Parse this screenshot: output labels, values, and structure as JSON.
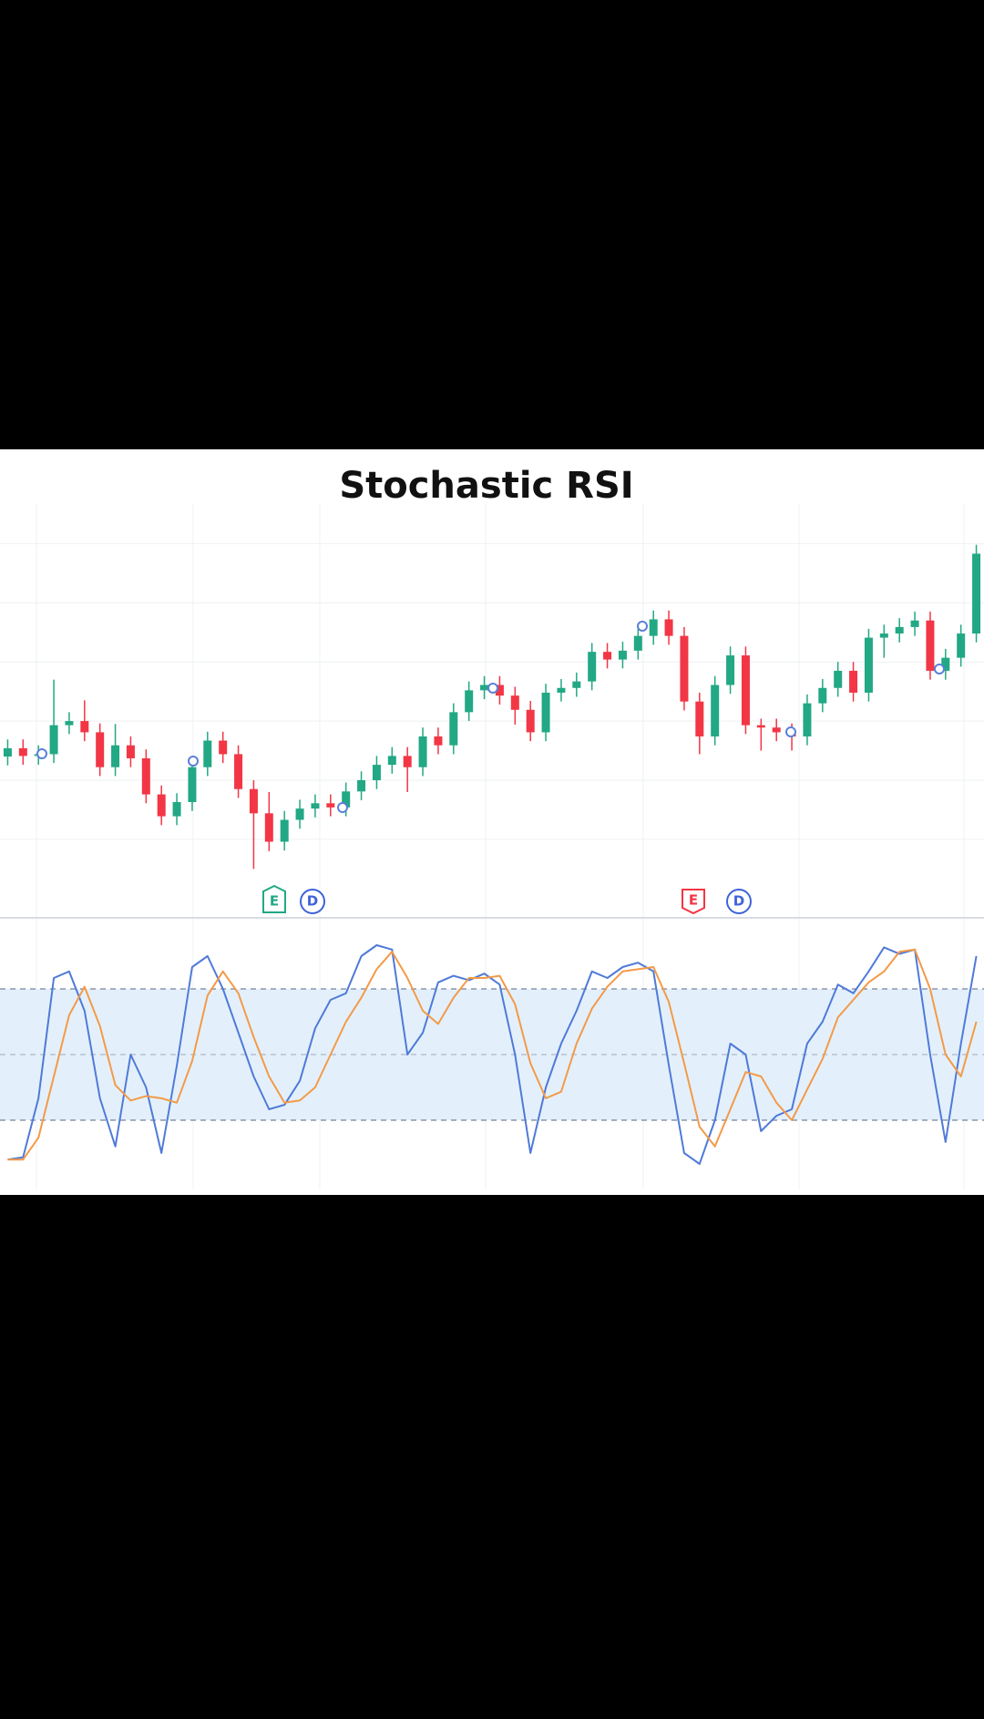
{
  "chart_data": [
    {
      "type": "candlestick",
      "title": "Stochastic RSI",
      "open": [
        2.4,
        2.54,
        2.41,
        2.44,
        2.93,
        3.0,
        2.81,
        2.22,
        2.59,
        2.37,
        1.76,
        1.39,
        1.63,
        2.22,
        2.67,
        2.44,
        1.85,
        1.44,
        0.96,
        1.33,
        1.52,
        1.61,
        1.54,
        1.81,
        2.0,
        2.26,
        2.41,
        2.22,
        2.74,
        2.59,
        3.15,
        3.52,
        3.61,
        3.43,
        3.19,
        2.81,
        3.48,
        3.56,
        3.67,
        4.17,
        4.04,
        4.19,
        4.44,
        4.72,
        4.44,
        3.33,
        2.74,
        3.61,
        4.11,
        2.93,
        2.89,
        2.81,
        2.74,
        3.3,
        3.56,
        3.85,
        3.48,
        4.41,
        4.48,
        4.59,
        4.7,
        3.85,
        4.07,
        4.48
      ],
      "high": [
        2.69,
        2.69,
        2.59,
        3.7,
        3.15,
        3.35,
        2.96,
        2.95,
        2.74,
        2.52,
        1.91,
        1.78,
        2.37,
        2.82,
        2.82,
        2.59,
        2.0,
        1.8,
        1.48,
        1.67,
        1.76,
        1.76,
        1.96,
        2.15,
        2.41,
        2.56,
        2.56,
        2.89,
        2.89,
        3.3,
        3.67,
        3.76,
        3.76,
        3.58,
        3.34,
        3.63,
        3.71,
        3.82,
        4.32,
        4.32,
        4.34,
        4.59,
        4.87,
        4.87,
        4.59,
        3.48,
        3.76,
        4.26,
        4.26,
        3.04,
        3.04,
        2.96,
        3.45,
        3.71,
        4.0,
        4.0,
        4.56,
        4.63,
        4.74,
        4.85,
        4.85,
        4.22,
        4.63,
        5.98
      ],
      "low": [
        2.25,
        2.26,
        2.26,
        2.29,
        2.78,
        2.66,
        2.07,
        2.07,
        2.22,
        1.61,
        1.24,
        1.24,
        1.48,
        2.07,
        2.29,
        1.7,
        0.5,
        0.8,
        0.81,
        1.18,
        1.37,
        1.39,
        1.39,
        1.66,
        1.85,
        2.11,
        1.8,
        2.07,
        2.44,
        2.44,
        3.0,
        3.37,
        3.28,
        2.94,
        2.66,
        2.66,
        3.33,
        3.41,
        3.52,
        3.89,
        3.89,
        4.04,
        4.29,
        4.29,
        3.18,
        2.44,
        2.59,
        3.46,
        2.78,
        2.5,
        2.66,
        2.5,
        2.59,
        3.15,
        3.41,
        3.33,
        3.33,
        4.07,
        4.33,
        4.44,
        3.7,
        3.7,
        3.92,
        4.33
      ],
      "close": [
        2.54,
        2.41,
        2.44,
        2.93,
        3.0,
        2.81,
        2.22,
        2.59,
        2.37,
        1.76,
        1.39,
        1.63,
        2.22,
        2.67,
        2.44,
        1.85,
        1.44,
        0.96,
        1.33,
        1.52,
        1.61,
        1.54,
        1.81,
        2.0,
        2.26,
        2.41,
        2.22,
        2.74,
        2.59,
        3.15,
        3.52,
        3.61,
        3.43,
        3.19,
        2.81,
        3.48,
        3.56,
        3.67,
        4.17,
        4.04,
        4.19,
        4.44,
        4.72,
        4.44,
        3.33,
        2.74,
        3.61,
        4.11,
        2.93,
        2.89,
        2.81,
        2.74,
        3.3,
        3.56,
        3.85,
        3.48,
        4.41,
        4.48,
        4.59,
        4.7,
        3.85,
        4.07,
        4.48,
        5.83
      ],
      "up_color": "#22a884",
      "down_color": "#f23645",
      "ylim": [
        -0.25,
        6.7
      ],
      "yticks": [
        1,
        2,
        3,
        4,
        5,
        6
      ],
      "grid": true,
      "annotations": [
        "E",
        "D",
        "E",
        "D"
      ]
    },
    {
      "type": "line",
      "series": [
        {
          "color": "#4f7ad8",
          "values": [
            2,
            3,
            30,
            85,
            88,
            70,
            30,
            8,
            50,
            35,
            5,
            45,
            90,
            95,
            80,
            60,
            40,
            25,
            27,
            38,
            62,
            75,
            78,
            95,
            100,
            98,
            50,
            60,
            83,
            86,
            84,
            87,
            82,
            50,
            5,
            35,
            55,
            70,
            88,
            85,
            90,
            92,
            88,
            45,
            5,
            0,
            20,
            55,
            50,
            15,
            22,
            25,
            55,
            65,
            82,
            78,
            88,
            99,
            96,
            98,
            50,
            10,
            55,
            95
          ]
        },
        {
          "color": "#f39a48",
          "values": [
            2,
            2,
            12,
            40,
            68,
            81,
            63,
            36,
            29,
            31,
            30,
            28,
            47,
            77,
            88,
            78,
            58,
            40,
            28,
            29,
            35,
            50,
            65,
            76,
            89,
            97,
            85,
            70,
            64,
            76,
            85,
            85,
            86,
            73,
            46,
            30,
            33,
            55,
            71,
            81,
            88,
            89,
            90,
            74,
            46,
            17,
            8,
            25,
            42,
            40,
            28,
            20,
            34,
            48,
            67,
            75,
            83,
            88,
            97,
            98,
            80,
            50,
            40,
            65
          ]
        }
      ],
      "ylim": [
        -10,
        110
      ],
      "yticks": [
        20,
        50,
        80
      ],
      "band": [
        20,
        80
      ],
      "band_color": "#e3f0fb"
    }
  ]
}
